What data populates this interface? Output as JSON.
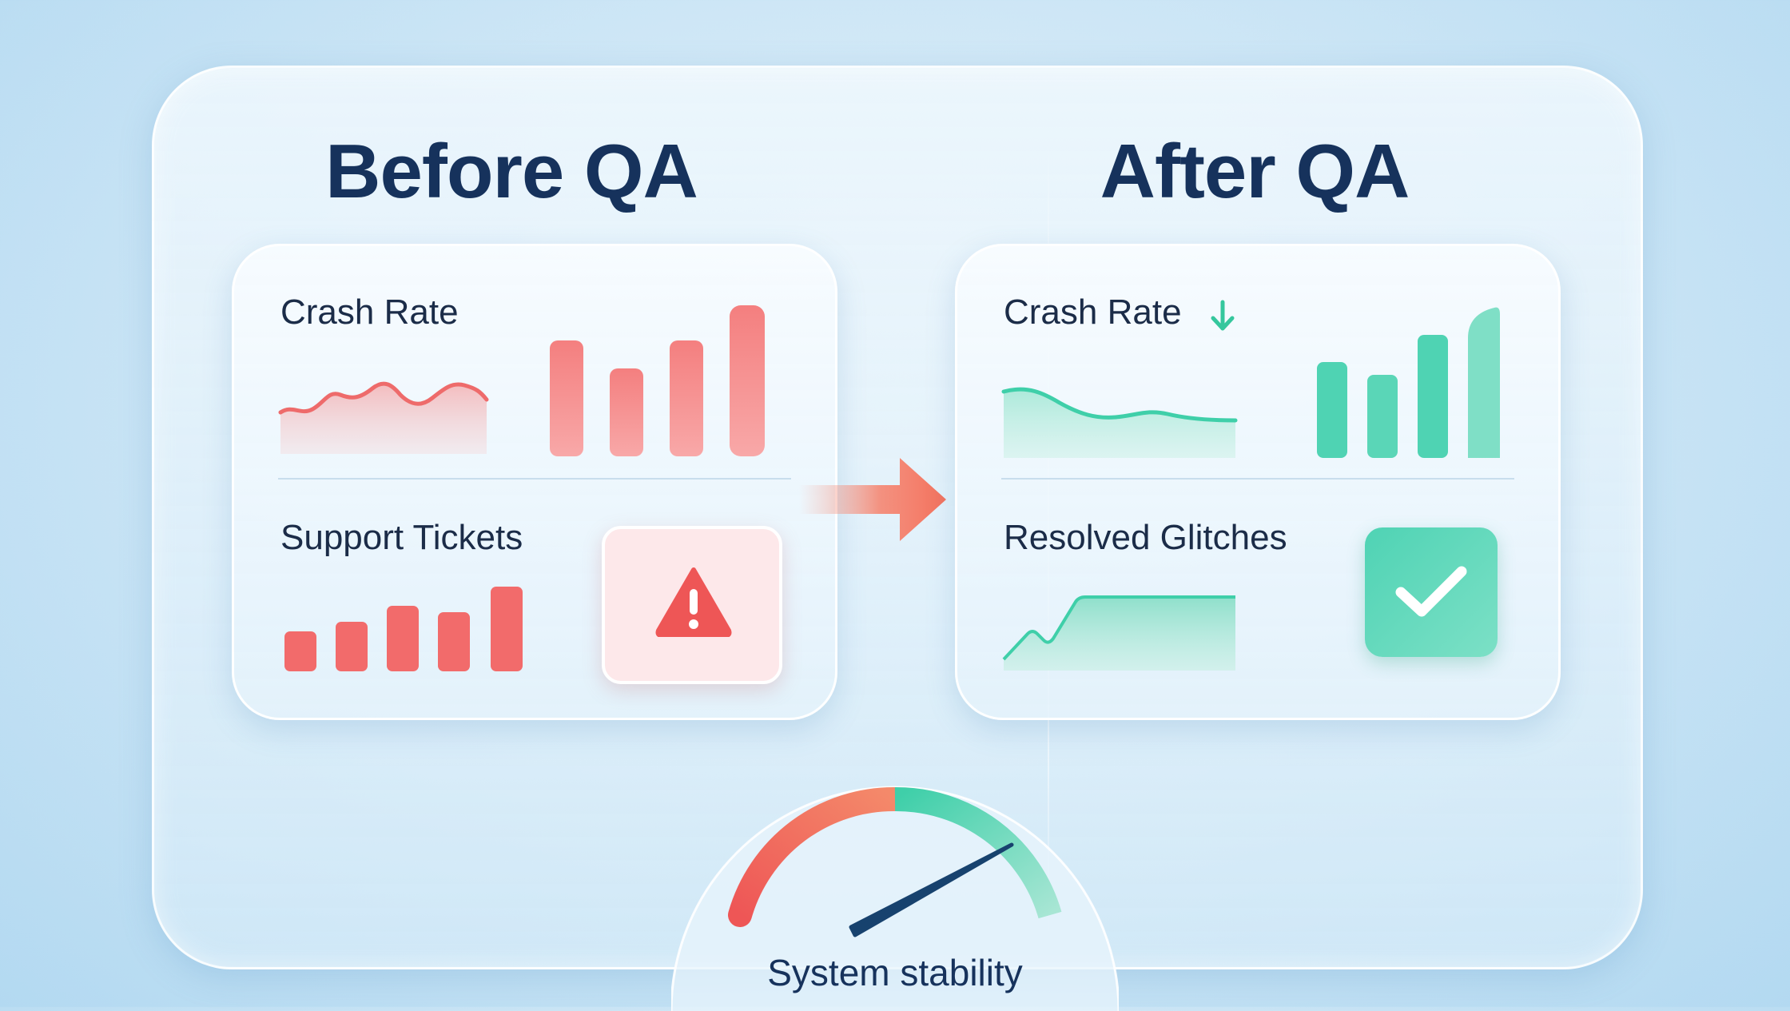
{
  "before": {
    "title": "Before QA",
    "crash_rate_label": "Crash Rate",
    "support_tickets_label": "Support Tickets"
  },
  "after": {
    "title": "After QA",
    "crash_rate_label": "Crash Rate",
    "resolved_glitches_label": "Resolved Glitches"
  },
  "gauge": {
    "caption": "System stability",
    "level": 0.78
  },
  "colors": {
    "before_accent": "#f26b6b",
    "after_accent": "#3fcfa9",
    "title_text": "#16325c"
  },
  "icons": {
    "warning": "warning-icon",
    "check": "check-icon",
    "down_arrow": "arrow-down-icon"
  }
}
